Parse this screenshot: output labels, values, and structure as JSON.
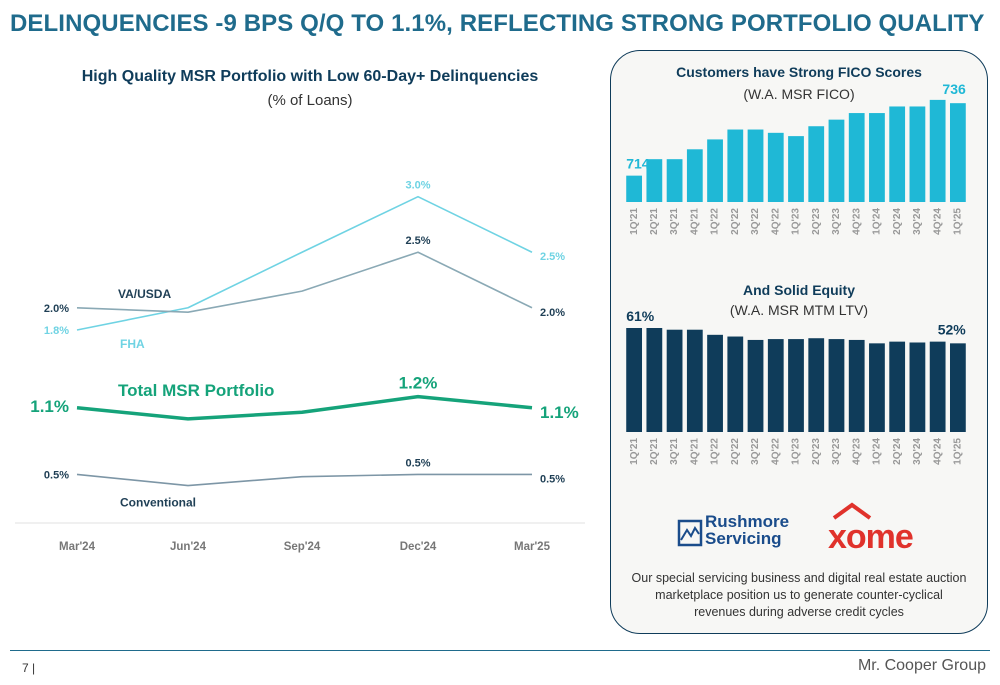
{
  "headline": "DELINQUENCIES -9 BPS Q/Q TO 1.1%, REFLECTING STRONG PORTFOLIO QUALITY",
  "colors": {
    "fha": "#6fd3e3",
    "va": "#8aa9b5",
    "total": "#15a37a",
    "conventional": "#7d96a6",
    "fico_bar": "#1fb8d6",
    "ltv_bar": "#0f3c5a",
    "title": "#1f6b8c"
  },
  "page_number": "7 |",
  "brand": "Mr. Cooper Group",
  "logos": {
    "rushmore_line1": "Rushmore",
    "rushmore_line2": "Servicing",
    "xome": "xome"
  },
  "blurb": "Our special servicing business and digital real estate auction marketplace position us to generate counter-cyclical revenues during adverse credit cycles",
  "chart_data": [
    {
      "type": "line",
      "title": "High Quality MSR Portfolio with Low 60-Day+ Delinquencies",
      "subtitle": "(% of Loans)",
      "categories": [
        "Mar'24",
        "Jun'24",
        "Sep'24",
        "Dec'24",
        "Mar'25"
      ],
      "ylim": [
        0,
        3.6
      ],
      "series": [
        {
          "name": "FHA",
          "values": [
            1.8,
            2.0,
            2.5,
            3.0,
            2.5
          ],
          "labels": [
            "1.8%",
            "",
            "",
            "3.0%",
            "2.5%"
          ]
        },
        {
          "name": "VA/USDA",
          "values": [
            2.0,
            1.96,
            2.15,
            2.5,
            2.0
          ],
          "labels": [
            "2.0%",
            "",
            "",
            "2.5%",
            "2.0%"
          ]
        },
        {
          "name": "Total MSR Portfolio",
          "values": [
            1.1,
            1.0,
            1.06,
            1.2,
            1.1
          ],
          "labels": [
            "1.1%",
            "",
            "",
            "1.2%",
            "1.1%"
          ]
        },
        {
          "name": "Conventional",
          "values": [
            0.5,
            0.4,
            0.48,
            0.5,
            0.5
          ],
          "labels": [
            "0.5%",
            "",
            "",
            "0.5%",
            "0.5%"
          ]
        }
      ]
    },
    {
      "type": "bar",
      "title": "Customers have Strong FICO Scores",
      "subtitle": "(W.A. MSR FICO)",
      "categories": [
        "1Q'21",
        "2Q'21",
        "3Q'21",
        "4Q'21",
        "1Q'22",
        "2Q'22",
        "3Q'22",
        "4Q'22",
        "1Q'23",
        "2Q'23",
        "3Q'23",
        "4Q'23",
        "1Q'24",
        "2Q'24",
        "3Q'24",
        "4Q'24",
        "1Q'25"
      ],
      "values": [
        714,
        719,
        719,
        722,
        725,
        728,
        728,
        727,
        726,
        729,
        731,
        733,
        733,
        735,
        735,
        737,
        736
      ],
      "labels": {
        "first": "714",
        "last": "736"
      },
      "ylim": [
        706,
        740
      ]
    },
    {
      "type": "bar",
      "title": "And Solid Equity",
      "subtitle": "(W.A. MSR MTM LTV)",
      "categories": [
        "1Q'21",
        "2Q'21",
        "3Q'21",
        "4Q'21",
        "1Q'22",
        "2Q'22",
        "3Q'22",
        "4Q'22",
        "1Q'23",
        "2Q'23",
        "3Q'23",
        "4Q'23",
        "1Q'24",
        "2Q'24",
        "3Q'24",
        "4Q'24",
        "1Q'25"
      ],
      "values": [
        61,
        61,
        60,
        60,
        57,
        56,
        54,
        54.5,
        54.5,
        55,
        54.5,
        54,
        52,
        53,
        52.5,
        53,
        52
      ],
      "labels": {
        "first": "61%",
        "last": "52%"
      },
      "ylim": [
        0,
        61
      ]
    }
  ]
}
